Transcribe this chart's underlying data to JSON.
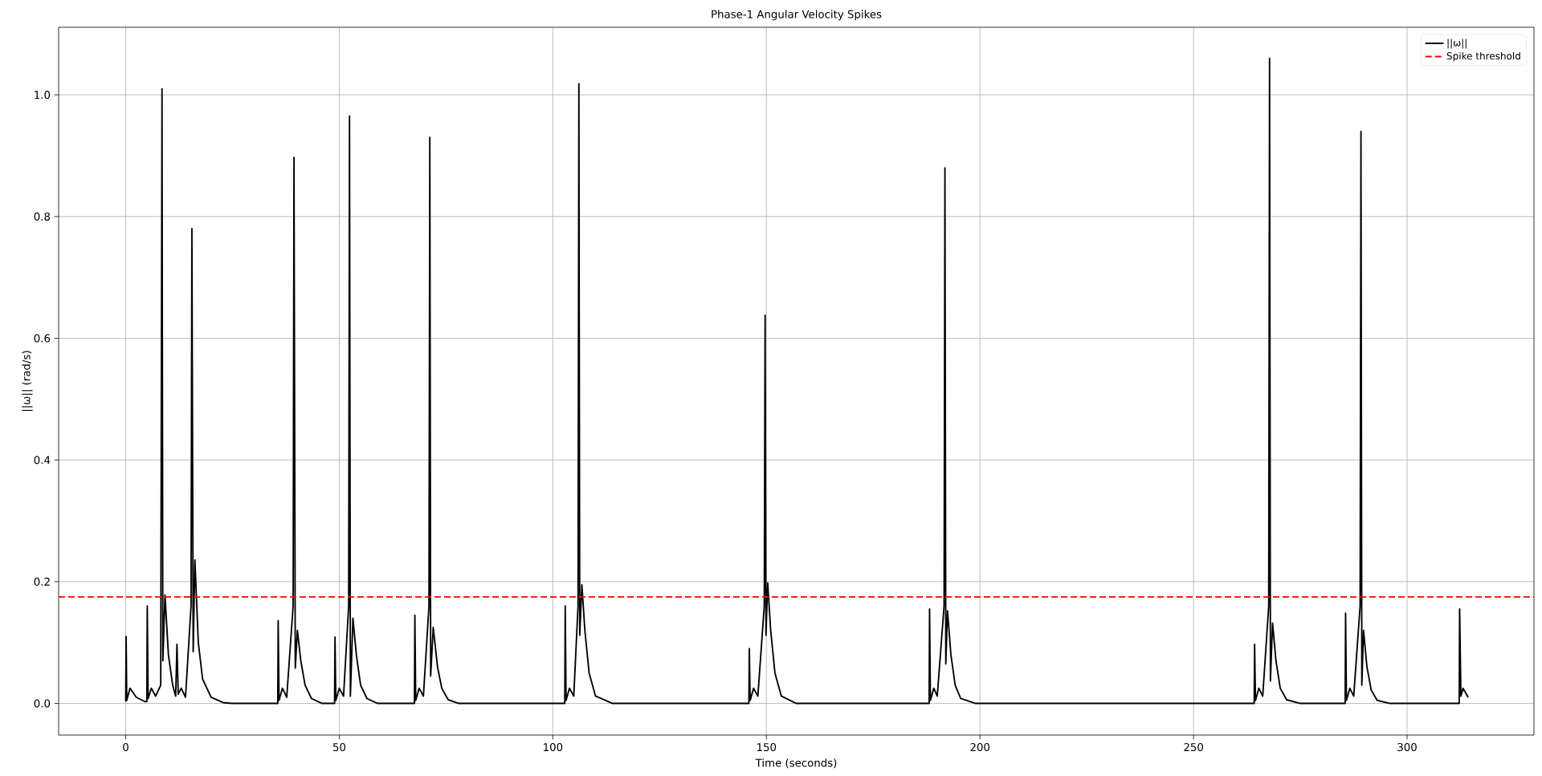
{
  "chart_data": {
    "type": "line",
    "title": "Phase-1 Angular Velocity Spikes",
    "xlabel": "Time (seconds)",
    "ylabel": "||ω|| (rad/s)",
    "xlim": [
      -15.7,
      329.7
    ],
    "ylim": [
      -0.052,
      1.111
    ],
    "xticks": [
      0,
      50,
      100,
      150,
      200,
      250,
      300
    ],
    "yticks": [
      {
        "value": 0,
        "label": "0.0"
      },
      {
        "value": 0.2,
        "label": "0.2"
      },
      {
        "value": 0.4,
        "label": "0.4"
      },
      {
        "value": 0.6,
        "label": "0.6"
      },
      {
        "value": 0.8,
        "label": "0.8"
      },
      {
        "value": 1.0,
        "label": "1.0"
      }
    ],
    "grid": true,
    "legend": "top right",
    "ref_lines": [
      {
        "axis": "y",
        "value": 0.175,
        "label": "Spike threshold",
        "color": "#ff0000",
        "line_style": "dashed"
      }
    ],
    "series": [
      {
        "name": "||ω||",
        "color": "#000000",
        "x": [
          0,
          0.1,
          0.25,
          1.0,
          2.5,
          4.5,
          4.95,
          5.05,
          5.25,
          6.0,
          7.0,
          8.2,
          8.5,
          8.7,
          9.2,
          10.0,
          11.0,
          11.7,
          12.0,
          12.3,
          13.0,
          14.0,
          15.3,
          15.5,
          15.8,
          16.2,
          17.0,
          18.0,
          20.0,
          23.0,
          25.0,
          35.6,
          35.7,
          35.9,
          36.7,
          37.7,
          39.2,
          39.4,
          39.7,
          40.2,
          41.0,
          42.0,
          43.5,
          46.0,
          48.9,
          49.0,
          49.2,
          50.0,
          51.0,
          52.2,
          52.4,
          52.6,
          53.2,
          54.0,
          55.0,
          56.5,
          59.0,
          67.6,
          67.7,
          67.9,
          68.7,
          69.7,
          71.0,
          71.2,
          71.4,
          72.0,
          73.0,
          74.0,
          75.5,
          78.0,
          102.8,
          102.9,
          103.1,
          103.9,
          104.9,
          105.9,
          106.1,
          106.3,
          106.8,
          107.5,
          108.5,
          110.0,
          114.0,
          145.9,
          146.0,
          146.2,
          147.0,
          148.0,
          149.5,
          149.7,
          149.9,
          150.3,
          151.0,
          152.0,
          153.5,
          157.0,
          188.1,
          188.2,
          188.4,
          189.2,
          190.0,
          191.6,
          191.8,
          192.0,
          192.4,
          193.2,
          194.2,
          195.5,
          199.0,
          264.2,
          264.3,
          264.5,
          265.3,
          266.2,
          267.6,
          267.8,
          268.0,
          268.5,
          269.3,
          270.3,
          271.8,
          275.0,
          285.5,
          285.6,
          285.8,
          286.6,
          287.5,
          289.0,
          289.2,
          289.4,
          289.8,
          290.6,
          291.6,
          293.0,
          296.0,
          312.2,
          312.3,
          312.6,
          313.1,
          314.3
        ],
        "values": [
          0.003,
          0.11,
          0.005,
          0.025,
          0.01,
          0.003,
          0.003,
          0.16,
          0.008,
          0.025,
          0.012,
          0.03,
          1.01,
          0.07,
          0.178,
          0.08,
          0.03,
          0.012,
          0.097,
          0.015,
          0.025,
          0.01,
          0.16,
          0.78,
          0.085,
          0.236,
          0.1,
          0.04,
          0.01,
          0.001,
          0,
          0,
          0.136,
          0.005,
          0.025,
          0.01,
          0.16,
          0.897,
          0.058,
          0.12,
          0.07,
          0.03,
          0.008,
          0,
          0,
          0.109,
          0.005,
          0.025,
          0.012,
          0.16,
          0.965,
          0.012,
          0.14,
          0.08,
          0.03,
          0.008,
          0,
          0,
          0.145,
          0.005,
          0.025,
          0.012,
          0.16,
          0.93,
          0.045,
          0.125,
          0.06,
          0.025,
          0.006,
          0,
          0,
          0.16,
          0.005,
          0.025,
          0.012,
          0.16,
          1.018,
          0.112,
          0.195,
          0.12,
          0.05,
          0.012,
          0,
          0,
          0.09,
          0.005,
          0.025,
          0.012,
          0.16,
          0.638,
          0.112,
          0.198,
          0.12,
          0.05,
          0.012,
          0,
          0,
          0.155,
          0.005,
          0.025,
          0.012,
          0.16,
          0.88,
          0.065,
          0.152,
          0.08,
          0.03,
          0.008,
          0,
          0,
          0.097,
          0.005,
          0.025,
          0.012,
          0.16,
          1.06,
          0.037,
          0.132,
          0.07,
          0.025,
          0.006,
          0,
          0,
          0.148,
          0.005,
          0.025,
          0.012,
          0.16,
          0.94,
          0.03,
          0.12,
          0.06,
          0.022,
          0.005,
          0,
          0,
          0.155,
          0.012,
          0.025,
          0.01
        ]
      }
    ]
  }
}
